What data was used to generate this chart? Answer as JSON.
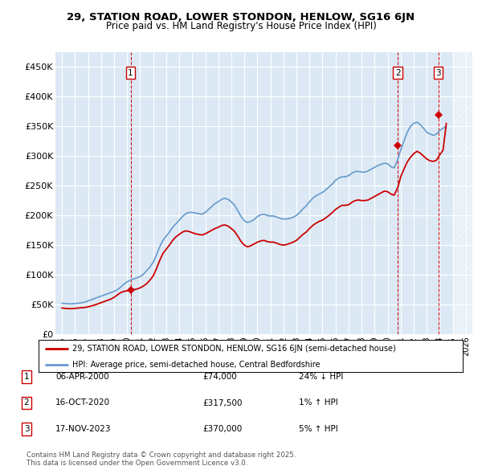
{
  "title": "29, STATION ROAD, LOWER STONDON, HENLOW, SG16 6JN",
  "subtitle": "Price paid vs. HM Land Registry's House Price Index (HPI)",
  "legend_line1": "29, STATION ROAD, LOWER STONDON, HENLOW, SG16 6JN (semi-detached house)",
  "legend_line2": "HPI: Average price, semi-detached house, Central Bedfordshire",
  "footer": "Contains HM Land Registry data © Crown copyright and database right 2025.\nThis data is licensed under the Open Government Licence v3.0.",
  "sales": [
    {
      "num": 1,
      "date_label": "06-APR-2000",
      "price": 74000,
      "hpi_diff": "24% ↓ HPI"
    },
    {
      "num": 2,
      "date_label": "16-OCT-2020",
      "price": 317500,
      "hpi_diff": "1% ↑ HPI"
    },
    {
      "num": 3,
      "date_label": "17-NOV-2023",
      "price": 370000,
      "hpi_diff": "5% ↑ HPI"
    }
  ],
  "sale_dates_decimal": [
    2000.27,
    2020.79,
    2023.88
  ],
  "sale_prices": [
    74000,
    317500,
    370000
  ],
  "sale_color": "#cc0000",
  "hpi_color": "#6699cc",
  "plot_bg": "#dce9f5",
  "grid_color": "#ffffff",
  "ylim": [
    0,
    475000
  ],
  "yticks": [
    0,
    50000,
    100000,
    150000,
    200000,
    250000,
    300000,
    350000,
    400000,
    450000
  ],
  "xlim": [
    1994.5,
    2026.5
  ],
  "hpi_data": {
    "years": [
      1995.0,
      1995.25,
      1995.5,
      1995.75,
      1996.0,
      1996.25,
      1996.5,
      1996.75,
      1997.0,
      1997.25,
      1997.5,
      1997.75,
      1998.0,
      1998.25,
      1998.5,
      1998.75,
      1999.0,
      1999.25,
      1999.5,
      1999.75,
      2000.0,
      2000.25,
      2000.5,
      2000.75,
      2001.0,
      2001.25,
      2001.5,
      2001.75,
      2002.0,
      2002.25,
      2002.5,
      2002.75,
      2003.0,
      2003.25,
      2003.5,
      2003.75,
      2004.0,
      2004.25,
      2004.5,
      2004.75,
      2005.0,
      2005.25,
      2005.5,
      2005.75,
      2006.0,
      2006.25,
      2006.5,
      2006.75,
      2007.0,
      2007.25,
      2007.5,
      2007.75,
      2008.0,
      2008.25,
      2008.5,
      2008.75,
      2009.0,
      2009.25,
      2009.5,
      2009.75,
      2010.0,
      2010.25,
      2010.5,
      2010.75,
      2011.0,
      2011.25,
      2011.5,
      2011.75,
      2012.0,
      2012.25,
      2012.5,
      2012.75,
      2013.0,
      2013.25,
      2013.5,
      2013.75,
      2014.0,
      2014.25,
      2014.5,
      2014.75,
      2015.0,
      2015.25,
      2015.5,
      2015.75,
      2016.0,
      2016.25,
      2016.5,
      2016.75,
      2017.0,
      2017.25,
      2017.5,
      2017.75,
      2018.0,
      2018.25,
      2018.5,
      2018.75,
      2019.0,
      2019.25,
      2019.5,
      2019.75,
      2020.0,
      2020.25,
      2020.5,
      2020.75,
      2021.0,
      2021.25,
      2021.5,
      2021.75,
      2022.0,
      2022.25,
      2022.5,
      2022.75,
      2023.0,
      2023.25,
      2023.5,
      2023.75,
      2024.0,
      2024.25,
      2024.5
    ],
    "values": [
      52000,
      51500,
      51000,
      51000,
      51500,
      52000,
      53000,
      54000,
      56000,
      58000,
      60000,
      62000,
      64000,
      66000,
      68000,
      70000,
      72000,
      75000,
      79000,
      84000,
      88000,
      91000,
      93000,
      95000,
      97000,
      101000,
      107000,
      113000,
      121000,
      133000,
      147000,
      158000,
      165000,
      172000,
      180000,
      186000,
      192000,
      198000,
      203000,
      205000,
      205000,
      204000,
      203000,
      202000,
      205000,
      210000,
      215000,
      220000,
      223000,
      227000,
      229000,
      227000,
      223000,
      217000,
      208000,
      198000,
      191000,
      188000,
      190000,
      193000,
      198000,
      201000,
      202000,
      200000,
      199000,
      199000,
      197000,
      195000,
      194000,
      194000,
      195000,
      197000,
      200000,
      205000,
      211000,
      216000,
      223000,
      229000,
      233000,
      236000,
      239000,
      243000,
      248000,
      253000,
      259000,
      263000,
      265000,
      265000,
      267000,
      271000,
      274000,
      274000,
      273000,
      273000,
      275000,
      278000,
      281000,
      284000,
      286000,
      288000,
      287000,
      282000,
      280000,
      293000,
      310000,
      325000,
      340000,
      350000,
      355000,
      357000,
      353000,
      347000,
      340000,
      337000,
      335000,
      337000,
      343000,
      347000,
      350000
    ]
  },
  "price_paid_data": {
    "years": [
      1995.0,
      1995.25,
      1995.5,
      1995.75,
      1996.0,
      1996.25,
      1996.5,
      1996.75,
      1997.0,
      1997.25,
      1997.5,
      1997.75,
      1998.0,
      1998.25,
      1998.5,
      1998.75,
      1999.0,
      1999.25,
      1999.5,
      1999.75,
      2000.0,
      2000.27,
      2000.5,
      2000.75,
      2001.0,
      2001.25,
      2001.5,
      2001.75,
      2002.0,
      2002.25,
      2002.5,
      2002.75,
      2003.0,
      2003.25,
      2003.5,
      2003.75,
      2004.0,
      2004.25,
      2004.5,
      2004.75,
      2005.0,
      2005.25,
      2005.5,
      2005.75,
      2006.0,
      2006.25,
      2006.5,
      2006.75,
      2007.0,
      2007.25,
      2007.5,
      2007.75,
      2008.0,
      2008.25,
      2008.5,
      2008.75,
      2009.0,
      2009.25,
      2009.5,
      2009.75,
      2010.0,
      2010.25,
      2010.5,
      2010.75,
      2011.0,
      2011.25,
      2011.5,
      2011.75,
      2012.0,
      2012.25,
      2012.5,
      2012.75,
      2013.0,
      2013.25,
      2013.5,
      2013.75,
      2014.0,
      2014.25,
      2014.5,
      2014.75,
      2015.0,
      2015.25,
      2015.5,
      2015.75,
      2016.0,
      2016.25,
      2016.5,
      2016.75,
      2017.0,
      2017.25,
      2017.5,
      2017.75,
      2018.0,
      2018.25,
      2018.5,
      2018.75,
      2019.0,
      2019.25,
      2019.5,
      2019.75,
      2020.0,
      2020.25,
      2020.5,
      2020.79,
      2021.0,
      2021.25,
      2021.5,
      2021.75,
      2022.0,
      2022.25,
      2022.5,
      2022.75,
      2023.0,
      2023.25,
      2023.5,
      2023.75,
      2023.88,
      2024.0,
      2024.25,
      2024.5
    ],
    "values": [
      44000,
      43500,
      43000,
      43000,
      43500,
      44000,
      44500,
      45000,
      46000,
      47500,
      49000,
      51000,
      53000,
      55000,
      57000,
      59000,
      62000,
      66000,
      70000,
      72000,
      73000,
      74000,
      75000,
      76000,
      78000,
      81000,
      85000,
      91000,
      98000,
      110000,
      124000,
      136000,
      143000,
      150000,
      158000,
      164000,
      168000,
      172000,
      174000,
      173000,
      171000,
      169000,
      168000,
      167000,
      169000,
      172000,
      175000,
      178000,
      180000,
      183000,
      184000,
      182000,
      178000,
      173000,
      165000,
      156000,
      150000,
      147000,
      149000,
      152000,
      155000,
      157000,
      158000,
      156000,
      155000,
      155000,
      153000,
      151000,
      150000,
      151000,
      153000,
      155000,
      158000,
      163000,
      168000,
      172000,
      178000,
      183000,
      187000,
      190000,
      192000,
      196000,
      200000,
      205000,
      210000,
      214000,
      217000,
      217000,
      218000,
      222000,
      225000,
      226000,
      225000,
      225000,
      226000,
      229000,
      232000,
      235000,
      238000,
      241000,
      240000,
      236000,
      234000,
      248000,
      265000,
      278000,
      290000,
      298000,
      304000,
      308000,
      305000,
      300000,
      295000,
      292000,
      291000,
      293000,
      298000,
      302000,
      310000,
      355000
    ]
  }
}
